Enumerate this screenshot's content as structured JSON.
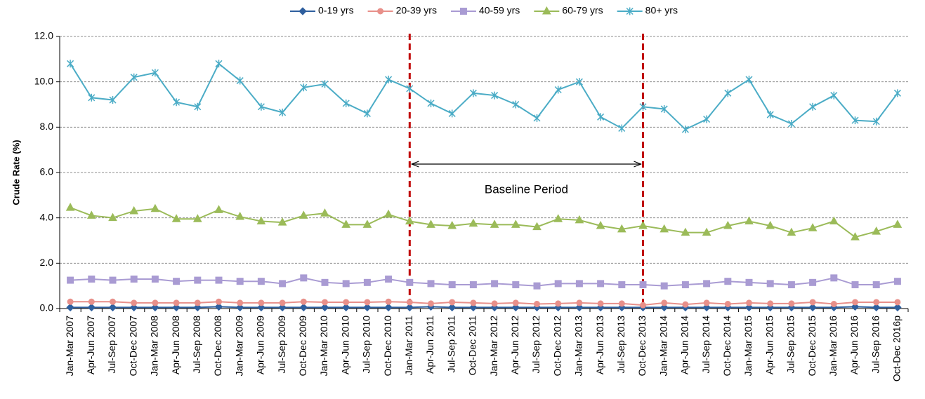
{
  "chart_data": {
    "type": "line",
    "y_label": "Crude Rate (%)",
    "ylim": [
      0,
      12
    ],
    "yticks": [
      {
        "value": 0,
        "label": "0.0"
      },
      {
        "value": 2,
        "label": "2.0"
      },
      {
        "value": 4,
        "label": "4.0"
      },
      {
        "value": 6,
        "label": "6.0"
      },
      {
        "value": 8,
        "label": "8.0"
      },
      {
        "value": 10,
        "label": "10.0"
      },
      {
        "value": 12,
        "label": "12.0"
      }
    ],
    "grid": true,
    "legend": "top",
    "categories": [
      "Jan-Mar 2007",
      "Apr-Jun 2007",
      "Jul-Sep 2007",
      "Oct-Dec 2007",
      "Jan-Mar 2008",
      "Apr-Jun 2008",
      "Jul-Sep 2008",
      "Oct-Dec 2008",
      "Jan-Mar 2009",
      "Apr-Jun 2009",
      "Jul-Sep 2009",
      "Oct-Dec 2009",
      "Jan-Mar 2010",
      "Apr-Jun 2010",
      "Jul-Sep 2010",
      "Oct-Dec 2010",
      "Jan-Mar 2011",
      "Apr-Jun 2011",
      "Jul-Sep 2011",
      "Oct-Dec 2011",
      "Jan-Mar 2012",
      "Apr-Jun 2012",
      "Jul-Sep 2012",
      "Oct-Dec 2012",
      "Jan-Mar 2013",
      "Apr-Jun 2013",
      "Jul-Sep  2013",
      "Oct-Dec 2013",
      "Jan-Mar 2014",
      "Apr-Jun 2014",
      "Jul-Sep 2014",
      "Oct-Dec 2014",
      "Jan-Mar 2015",
      "Apr-Jun 2015",
      "Jul-Sep 2015",
      "Oct-Dec 2015",
      "Jan-Mar 2016",
      "Apr-Jun 2016",
      "Jul-Sep 2016",
      "Oct-Dec 2016p"
    ],
    "series": [
      {
        "name": "0-19 yrs",
        "color": "#2e5f9e",
        "marker": "diamond",
        "values": [
          0.05,
          0.05,
          0.05,
          0.05,
          0.05,
          0.05,
          0.05,
          0.08,
          0.05,
          0.05,
          0.05,
          0.05,
          0.05,
          0.05,
          0.05,
          0.05,
          0.05,
          0.08,
          0.05,
          0.05,
          0.05,
          0.05,
          0.05,
          0.05,
          0.05,
          0.05,
          0.05,
          0.05,
          0.05,
          0.05,
          0.05,
          0.05,
          0.05,
          0.05,
          0.05,
          0.05,
          0.05,
          0.08,
          0.05,
          0.05
        ]
      },
      {
        "name": "20-39 yrs",
        "color": "#e8908a",
        "marker": "circle",
        "values": [
          0.3,
          0.3,
          0.3,
          0.25,
          0.25,
          0.25,
          0.25,
          0.3,
          0.25,
          0.25,
          0.25,
          0.3,
          0.28,
          0.28,
          0.28,
          0.3,
          0.28,
          0.22,
          0.28,
          0.25,
          0.22,
          0.25,
          0.2,
          0.22,
          0.25,
          0.22,
          0.22,
          0.15,
          0.25,
          0.18,
          0.25,
          0.2,
          0.25,
          0.22,
          0.22,
          0.28,
          0.2,
          0.28,
          0.28,
          0.28
        ]
      },
      {
        "name": "40-59 yrs",
        "color": "#a99bd3",
        "marker": "square",
        "values": [
          1.25,
          1.3,
          1.25,
          1.3,
          1.3,
          1.2,
          1.25,
          1.25,
          1.2,
          1.2,
          1.1,
          1.35,
          1.15,
          1.1,
          1.15,
          1.3,
          1.15,
          1.1,
          1.05,
          1.05,
          1.1,
          1.05,
          1.0,
          1.1,
          1.1,
          1.1,
          1.05,
          1.05,
          1.0,
          1.05,
          1.1,
          1.2,
          1.15,
          1.1,
          1.05,
          1.15,
          1.35,
          1.05,
          1.05,
          1.2
        ]
      },
      {
        "name": "60-79 yrs",
        "color": "#9bbb59",
        "marker": "triangle",
        "values": [
          4.45,
          4.1,
          4.0,
          4.3,
          4.4,
          3.95,
          3.95,
          4.35,
          4.05,
          3.85,
          3.8,
          4.1,
          4.2,
          3.7,
          3.7,
          4.15,
          3.85,
          3.7,
          3.65,
          3.75,
          3.7,
          3.7,
          3.6,
          3.95,
          3.9,
          3.65,
          3.5,
          3.65,
          3.5,
          3.35,
          3.35,
          3.65,
          3.85,
          3.65,
          3.35,
          3.55,
          3.85,
          3.15,
          3.4,
          3.7
        ]
      },
      {
        "name": "80+ yrs",
        "color": "#4bacc6",
        "marker": "star",
        "values": [
          10.8,
          9.3,
          9.2,
          10.2,
          10.4,
          9.1,
          8.9,
          10.8,
          10.05,
          8.9,
          8.65,
          9.75,
          9.9,
          9.05,
          8.6,
          10.1,
          9.7,
          9.05,
          8.6,
          9.5,
          9.4,
          9.0,
          8.4,
          9.65,
          10.0,
          8.45,
          7.95,
          8.9,
          8.8,
          7.9,
          8.35,
          9.5,
          10.1,
          8.55,
          8.15,
          8.9,
          9.4,
          8.3,
          8.25,
          9.5
        ]
      }
    ],
    "annotations": [
      {
        "text": "Baseline Period",
        "from": "Jan-Mar 2011",
        "to": "Oct-Dec 2013",
        "color": "#c00000"
      }
    ]
  }
}
